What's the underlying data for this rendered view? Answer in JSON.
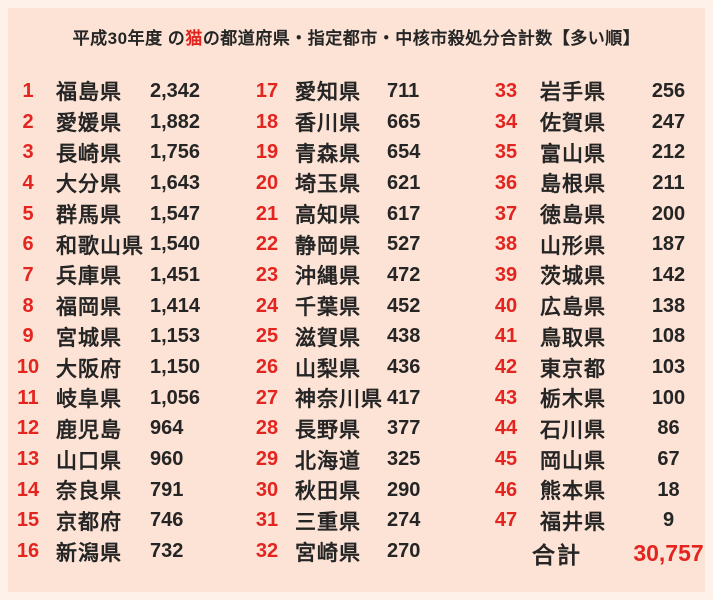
{
  "page": {
    "background": "#fce3d5",
    "frame_color": "#fdf1e9",
    "accent_red": "#e3241f",
    "text_color": "#252525"
  },
  "title": {
    "prefix": "平成30年度 の",
    "highlight": "猫",
    "suffix": "の都道府県・指定都市・中核市殺処分合計数【多い順】"
  },
  "columns": [
    {
      "entries": [
        {
          "rank": "1",
          "name": "福島県",
          "value": "2,342"
        },
        {
          "rank": "2",
          "name": "愛媛県",
          "value": "1,882"
        },
        {
          "rank": "3",
          "name": "長崎県",
          "value": "1,756"
        },
        {
          "rank": "4",
          "name": "大分県",
          "value": "1,643"
        },
        {
          "rank": "5",
          "name": "群馬県",
          "value": "1,547"
        },
        {
          "rank": "6",
          "name": "和歌山県",
          "value": "1,540"
        },
        {
          "rank": "7",
          "name": "兵庫県",
          "value": "1,451"
        },
        {
          "rank": "8",
          "name": "福岡県",
          "value": "1,414"
        },
        {
          "rank": "9",
          "name": "宮城県",
          "value": "1,153"
        },
        {
          "rank": "10",
          "name": "大阪府",
          "value": "1,150"
        },
        {
          "rank": "11",
          "name": "岐阜県",
          "value": "1,056"
        },
        {
          "rank": "12",
          "name": "鹿児島",
          "value": "964"
        },
        {
          "rank": "13",
          "name": "山口県",
          "value": "960"
        },
        {
          "rank": "14",
          "name": "奈良県",
          "value": "791"
        },
        {
          "rank": "15",
          "name": "京都府",
          "value": "746"
        },
        {
          "rank": "16",
          "name": "新潟県",
          "value": "732"
        }
      ]
    },
    {
      "entries": [
        {
          "rank": "17",
          "name": "愛知県",
          "value": "711"
        },
        {
          "rank": "18",
          "name": "香川県",
          "value": "665"
        },
        {
          "rank": "19",
          "name": "青森県",
          "value": "654"
        },
        {
          "rank": "20",
          "name": "埼玉県",
          "value": "621"
        },
        {
          "rank": "21",
          "name": "高知県",
          "value": "617"
        },
        {
          "rank": "22",
          "name": "静岡県",
          "value": "527"
        },
        {
          "rank": "23",
          "name": "沖縄県",
          "value": "472"
        },
        {
          "rank": "24",
          "name": "千葉県",
          "value": "452"
        },
        {
          "rank": "25",
          "name": "滋賀県",
          "value": "438"
        },
        {
          "rank": "26",
          "name": "山梨県",
          "value": "436"
        },
        {
          "rank": "27",
          "name": "神奈川県",
          "value": "417"
        },
        {
          "rank": "28",
          "name": "長野県",
          "value": "377"
        },
        {
          "rank": "29",
          "name": "北海道",
          "value": "325"
        },
        {
          "rank": "30",
          "name": "秋田県",
          "value": "290"
        },
        {
          "rank": "31",
          "name": "三重県",
          "value": "274"
        },
        {
          "rank": "32",
          "name": "宮崎県",
          "value": "270"
        }
      ]
    },
    {
      "entries": [
        {
          "rank": "33",
          "name": "岩手県",
          "value": "256"
        },
        {
          "rank": "34",
          "name": "佐賀県",
          "value": "247"
        },
        {
          "rank": "35",
          "name": "富山県",
          "value": "212"
        },
        {
          "rank": "36",
          "name": "島根県",
          "value": "211"
        },
        {
          "rank": "37",
          "name": "徳島県",
          "value": "200"
        },
        {
          "rank": "38",
          "name": "山形県",
          "value": "187"
        },
        {
          "rank": "39",
          "name": "茨城県",
          "value": "142"
        },
        {
          "rank": "40",
          "name": "広島県",
          "value": "138"
        },
        {
          "rank": "41",
          "name": "鳥取県",
          "value": "108"
        },
        {
          "rank": "42",
          "name": "東京都",
          "value": "103"
        },
        {
          "rank": "43",
          "name": "栃木県",
          "value": "100"
        },
        {
          "rank": "44",
          "name": "石川県",
          "value": "86"
        },
        {
          "rank": "45",
          "name": "岡山県",
          "value": "67"
        },
        {
          "rank": "46",
          "name": "熊本県",
          "value": "18"
        },
        {
          "rank": "47",
          "name": "福井県",
          "value": "9"
        }
      ]
    }
  ],
  "total": {
    "label": "合計",
    "value": "30,757"
  },
  "chart_data": {
    "type": "table",
    "title": "平成30年度 の猫の都道府県・指定都市・中核市殺処分合計数【多い順】",
    "order": "descending",
    "rows": [
      [
        1,
        "福島県",
        2342
      ],
      [
        2,
        "愛媛県",
        1882
      ],
      [
        3,
        "長崎県",
        1756
      ],
      [
        4,
        "大分県",
        1643
      ],
      [
        5,
        "群馬県",
        1547
      ],
      [
        6,
        "和歌山県",
        1540
      ],
      [
        7,
        "兵庫県",
        1451
      ],
      [
        8,
        "福岡県",
        1414
      ],
      [
        9,
        "宮城県",
        1153
      ],
      [
        10,
        "大阪府",
        1150
      ],
      [
        11,
        "岐阜県",
        1056
      ],
      [
        12,
        "鹿児島",
        964
      ],
      [
        13,
        "山口県",
        960
      ],
      [
        14,
        "奈良県",
        791
      ],
      [
        15,
        "京都府",
        746
      ],
      [
        16,
        "新潟県",
        732
      ],
      [
        17,
        "愛知県",
        711
      ],
      [
        18,
        "香川県",
        665
      ],
      [
        19,
        "青森県",
        654
      ],
      [
        20,
        "埼玉県",
        621
      ],
      [
        21,
        "高知県",
        617
      ],
      [
        22,
        "静岡県",
        527
      ],
      [
        23,
        "沖縄県",
        472
      ],
      [
        24,
        "千葉県",
        452
      ],
      [
        25,
        "滋賀県",
        438
      ],
      [
        26,
        "山梨県",
        436
      ],
      [
        27,
        "神奈川県",
        417
      ],
      [
        28,
        "長野県",
        377
      ],
      [
        29,
        "北海道",
        325
      ],
      [
        30,
        "秋田県",
        290
      ],
      [
        31,
        "三重県",
        274
      ],
      [
        32,
        "宮崎県",
        270
      ],
      [
        33,
        "岩手県",
        256
      ],
      [
        34,
        "佐賀県",
        247
      ],
      [
        35,
        "富山県",
        212
      ],
      [
        36,
        "島根県",
        211
      ],
      [
        37,
        "徳島県",
        200
      ],
      [
        38,
        "山形県",
        187
      ],
      [
        39,
        "茨城県",
        142
      ],
      [
        40,
        "広島県",
        138
      ],
      [
        41,
        "鳥取県",
        108
      ],
      [
        42,
        "東京都",
        103
      ],
      [
        43,
        "栃木県",
        100
      ],
      [
        44,
        "石川県",
        86
      ],
      [
        45,
        "岡山県",
        67
      ],
      [
        46,
        "熊本県",
        18
      ],
      [
        47,
        "福井県",
        9
      ]
    ],
    "total_label": "合計",
    "total": 30757
  }
}
